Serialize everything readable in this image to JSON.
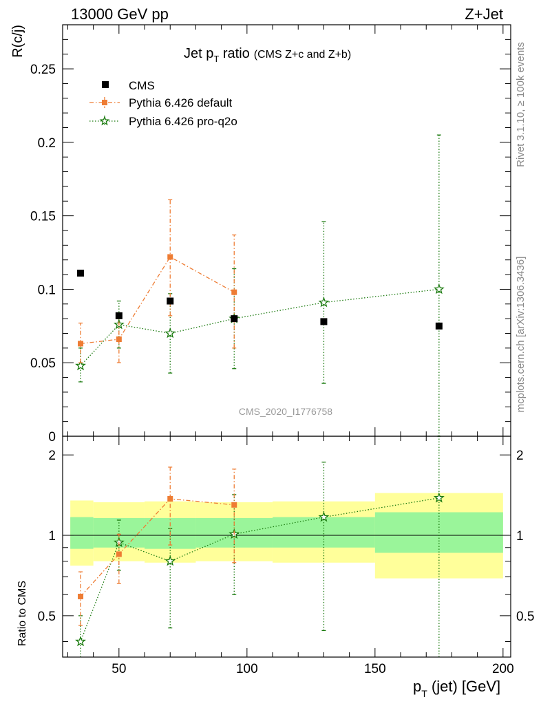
{
  "header": {
    "left": "13000 GeV pp",
    "right": "Z+Jet"
  },
  "side_text": {
    "rivet": "Rivet 3.1.10, ≥ 100k events",
    "mcplots": "mcplots.cern.ch [arXiv:1306.3436]"
  },
  "watermark": "CMS_2020_I1776758",
  "colors": {
    "cms": "#000000",
    "default": "#ee7c33",
    "proq2o": "#1a7a0e",
    "band_outer": "#ffff9a",
    "band_inner": "#9af59a"
  },
  "chart_data": [
    {
      "type": "scatter",
      "title_main": "Jet p",
      "title_sub": "T",
      "title_rest": " ratio",
      "title_small": "(CMS  Z+c and Z+b)",
      "ylabel": "R(c/j)",
      "xlim": [
        28,
        203
      ],
      "ylim": [
        0,
        0.28
      ],
      "yticks": [
        0,
        0.05,
        0.1,
        0.15,
        0.2,
        0.25
      ],
      "ytick_labels": [
        "0",
        "0.05",
        "0.1",
        "0.15",
        "0.2",
        "0.25"
      ],
      "legend": [
        "CMS",
        "Pythia 6.426 default",
        "Pythia 6.426 pro-q2o"
      ],
      "series": [
        {
          "name": "CMS",
          "marker": "square",
          "x": [
            35,
            50,
            70,
            95,
            130,
            175
          ],
          "y": [
            0.111,
            0.082,
            0.092,
            0.08,
            0.078,
            0.075
          ]
        },
        {
          "name": "Pythia 6.426 default",
          "marker": "square-dashdot",
          "x": [
            35,
            50,
            70,
            95
          ],
          "y": [
            0.063,
            0.066,
            0.122,
            0.098
          ],
          "ylo": [
            0.05,
            0.05,
            0.082,
            0.06
          ],
          "yhi": [
            0.077,
            0.082,
            0.161,
            0.137
          ]
        },
        {
          "name": "Pythia 6.426 pro-q2o",
          "marker": "star-dotted",
          "x": [
            35,
            50,
            70,
            95,
            130,
            175
          ],
          "y": [
            0.048,
            0.076,
            0.07,
            0.08,
            0.091,
            0.1
          ],
          "ylo": [
            0.037,
            0.06,
            0.043,
            0.046,
            0.036,
            0.0
          ],
          "yhi": [
            0.06,
            0.092,
            0.097,
            0.114,
            0.146,
            0.205
          ]
        }
      ]
    },
    {
      "type": "scatter",
      "ylabel": "Ratio to CMS",
      "xlabel_main": "p",
      "xlabel_sub": "T",
      "xlabel_rest": " (jet) [GeV]",
      "xlim": [
        28,
        203
      ],
      "ylim": [
        0.35,
        2.35
      ],
      "xticks": [
        50,
        100,
        150,
        200
      ],
      "xtick_labels": [
        "50",
        "100",
        "150",
        "200"
      ],
      "yticks": [
        0.5,
        1,
        2
      ],
      "ytick_labels": [
        "0.5",
        "1",
        "2"
      ],
      "bands": [
        {
          "x0": 31,
          "x1": 40,
          "outer": [
            0.77,
            1.35
          ],
          "inner": [
            0.89,
            1.17
          ]
        },
        {
          "x0": 40,
          "x1": 60,
          "outer": [
            0.8,
            1.33
          ],
          "inner": [
            0.9,
            1.16
          ]
        },
        {
          "x0": 60,
          "x1": 80,
          "outer": [
            0.79,
            1.34
          ],
          "inner": [
            0.89,
            1.16
          ]
        },
        {
          "x0": 80,
          "x1": 110,
          "outer": [
            0.8,
            1.33
          ],
          "inner": [
            0.9,
            1.16
          ]
        },
        {
          "x0": 110,
          "x1": 150,
          "outer": [
            0.79,
            1.34
          ],
          "inner": [
            0.9,
            1.17
          ]
        },
        {
          "x0": 150,
          "x1": 200,
          "outer": [
            0.69,
            1.44
          ],
          "inner": [
            0.86,
            1.22
          ]
        }
      ],
      "series": [
        {
          "name": "Pythia 6.426 default",
          "x": [
            35,
            50,
            70,
            95
          ],
          "y": [
            0.59,
            0.85,
            1.37,
            1.3
          ],
          "ylo": [
            0.46,
            0.66,
            0.92,
            0.79
          ],
          "yhi": [
            0.73,
            1.01,
            1.8,
            1.77
          ]
        },
        {
          "name": "Pythia 6.426 pro-q2o",
          "x": [
            35,
            50,
            70,
            95,
            130,
            175
          ],
          "y": [
            0.4,
            0.94,
            0.8,
            1.01,
            1.17,
            1.38
          ],
          "ylo": [
            0.31,
            0.74,
            0.45,
            0.6,
            0.44,
            0.0
          ],
          "yhi": [
            0.5,
            1.14,
            1.06,
            1.42,
            1.88,
            2.9
          ]
        }
      ]
    }
  ]
}
